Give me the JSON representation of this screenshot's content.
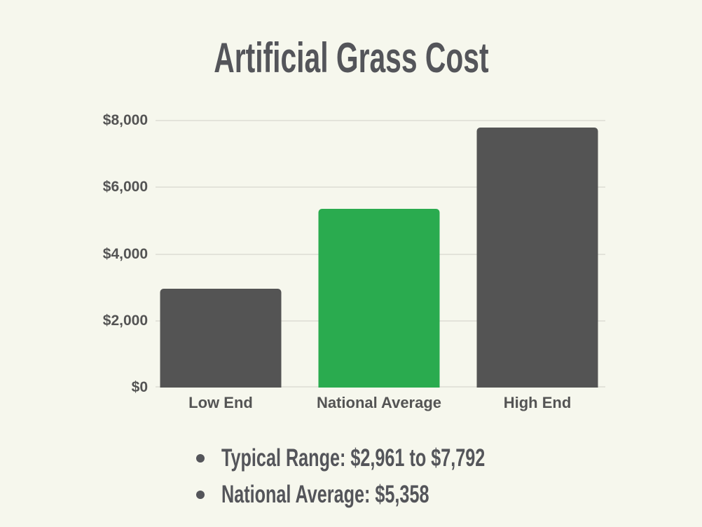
{
  "title": "Artificial Grass Cost",
  "chart_data": {
    "type": "bar",
    "title": "Artificial Grass Cost",
    "categories": [
      "Low End",
      "National Average",
      "High End"
    ],
    "values": [
      2961,
      5358,
      7792
    ],
    "bar_colors": [
      "#545454",
      "#2aab4f",
      "#545454"
    ],
    "xlabel": "",
    "ylabel": "",
    "ylim": [
      0,
      8000
    ],
    "yticks": [
      0,
      2000,
      4000,
      6000,
      8000
    ],
    "ytick_labels": [
      "$0",
      "$2,000",
      "$4,000",
      "$6,000",
      "$8,000"
    ],
    "grid": true,
    "legend": false
  },
  "notes": {
    "items": [
      "Typical Range: $2,961 to $7,792",
      "National Average: $5,358"
    ]
  },
  "colors": {
    "background": "#f6f7ed",
    "bar_default": "#545454",
    "bar_highlight": "#2aab4f",
    "title_text": "#54555a",
    "axis_text": "#545454",
    "gridline": "#e3e3da"
  }
}
